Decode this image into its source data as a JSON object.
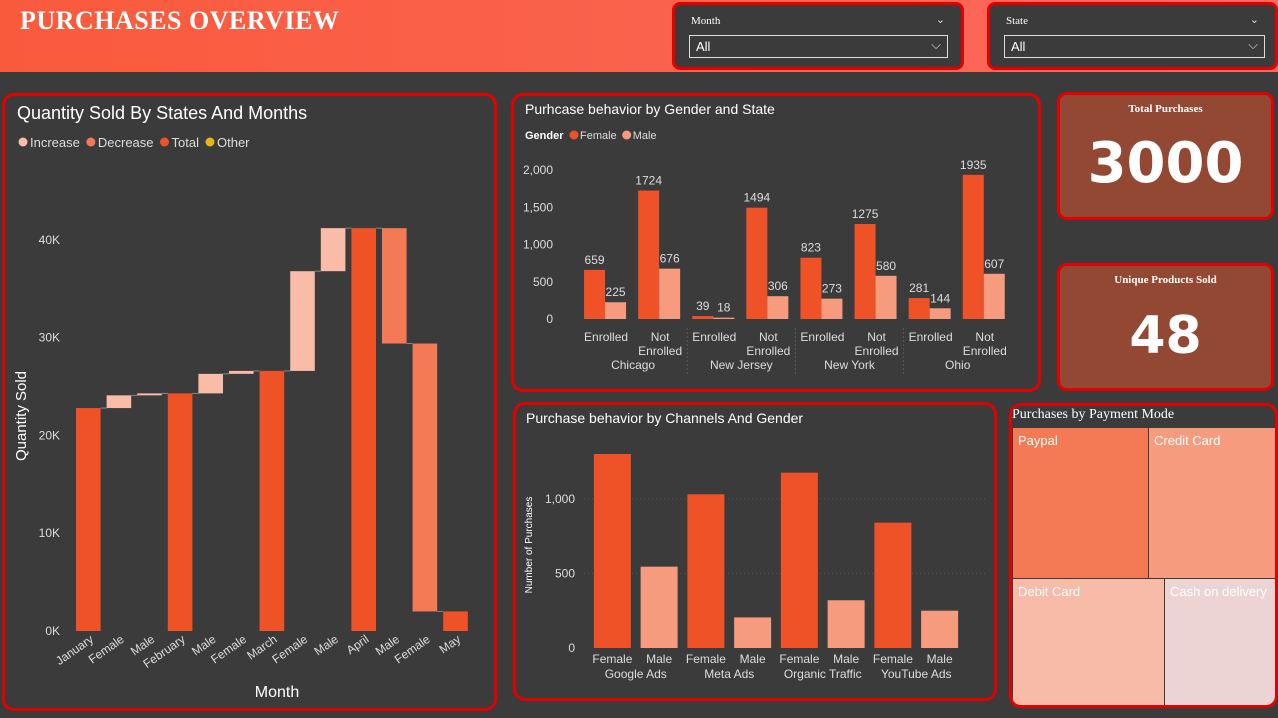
{
  "header": {
    "title": "PURCHASES OVERVIEW"
  },
  "filters": {
    "month": {
      "label": "Month",
      "value": "All"
    },
    "state": {
      "label": "State",
      "value": "All"
    }
  },
  "colors": {
    "total": "#f05228",
    "increase": "#f9bca8",
    "decrease": "#f47a55",
    "other": "#e8b516",
    "female": "#f05228",
    "male": "#f79b7e"
  },
  "icons": {
    "dropdown": "chevron-down-icon"
  },
  "kpis": [
    {
      "label": "Total Purchases",
      "value": "3000"
    },
    {
      "label": "Unique Products Sold",
      "value": "48"
    }
  ],
  "chart_data": [
    {
      "type": "waterfall",
      "title": "Quantity Sold By States And Months",
      "xlabel": "Month",
      "ylabel": "Quantity Sold",
      "ylim": [
        0,
        45000
      ],
      "yticks": [
        "0K",
        "10K",
        "20K",
        "30K",
        "40K"
      ],
      "legend": [
        "Increase",
        "Decrease",
        "Total",
        "Other"
      ],
      "legend_position": "top-left",
      "categories": [
        "January",
        "Female",
        "Male",
        "February",
        "Male",
        "Female",
        "March",
        "Female",
        "Male",
        "April",
        "Male",
        "Female",
        "May"
      ],
      "steps": [
        {
          "kind": "total",
          "start": 0,
          "end": 22800
        },
        {
          "kind": "increase",
          "start": 22800,
          "end": 24100
        },
        {
          "kind": "increase",
          "start": 24100,
          "end": 24300
        },
        {
          "kind": "total",
          "start": 0,
          "end": 24300
        },
        {
          "kind": "increase",
          "start": 24300,
          "end": 26300
        },
        {
          "kind": "increase",
          "start": 26300,
          "end": 26600
        },
        {
          "kind": "total",
          "start": 0,
          "end": 26600
        },
        {
          "kind": "increase",
          "start": 26600,
          "end": 36800
        },
        {
          "kind": "increase",
          "start": 36800,
          "end": 41200
        },
        {
          "kind": "total",
          "start": 0,
          "end": 41200
        },
        {
          "kind": "decrease",
          "start": 41200,
          "end": 29400
        },
        {
          "kind": "decrease",
          "start": 29400,
          "end": 2000
        },
        {
          "kind": "total",
          "start": 0,
          "end": 2000
        }
      ]
    },
    {
      "type": "bar",
      "title": "Purhcase behavior by Gender and State",
      "legend_title": "Gender",
      "legend_position": "top-left",
      "ylim": [
        0,
        2000
      ],
      "yticks": [
        "0",
        "500",
        "1,000",
        "1,500",
        "2,000"
      ],
      "groups": [
        "Chicago",
        "New Jersey",
        "New York",
        "Ohio"
      ],
      "categories": [
        "Enrolled",
        "Not Enrolled",
        "Enrolled",
        "Not Enrolled",
        "Enrolled",
        "Not Enrolled",
        "Enrolled",
        "Not Enrolled"
      ],
      "series": [
        {
          "name": "Female",
          "values": [
            659,
            1724,
            39,
            1494,
            823,
            1275,
            281,
            1935
          ],
          "labels": [
            "659",
            "1724",
            "39",
            "1494",
            "823",
            "1275",
            "281",
            "1935"
          ]
        },
        {
          "name": "Male",
          "values": [
            225,
            676,
            18,
            306,
            273,
            580,
            144,
            607
          ],
          "labels": [
            "225",
            "676",
            "18",
            "306",
            "273",
            "580",
            "144",
            "607"
          ]
        }
      ]
    },
    {
      "type": "bar",
      "title": "Purchase behavior by Channels And Gender",
      "ylabel": "Number of Purchases",
      "ylim": [
        0,
        1300
      ],
      "yticks": [
        "0",
        "500",
        "1,000"
      ],
      "groups": [
        "Google Ads",
        "Meta Ads",
        "Organic Traffic",
        "YouTube Ads"
      ],
      "categories": [
        "Female",
        "Male",
        "Female",
        "Male",
        "Female",
        "Male",
        "Female",
        "Male"
      ],
      "values": [
        1300,
        545,
        1030,
        205,
        1175,
        320,
        840,
        250
      ]
    },
    {
      "type": "treemap",
      "title": "Purchases by Payment Mode",
      "labels": [
        "Paypal",
        "Credit Card",
        "Debit Card",
        "Cash on delivery"
      ],
      "colors": [
        "#f47a55",
        "#f79b7e",
        "#f7bba8",
        "#ecd4d5"
      ]
    }
  ]
}
